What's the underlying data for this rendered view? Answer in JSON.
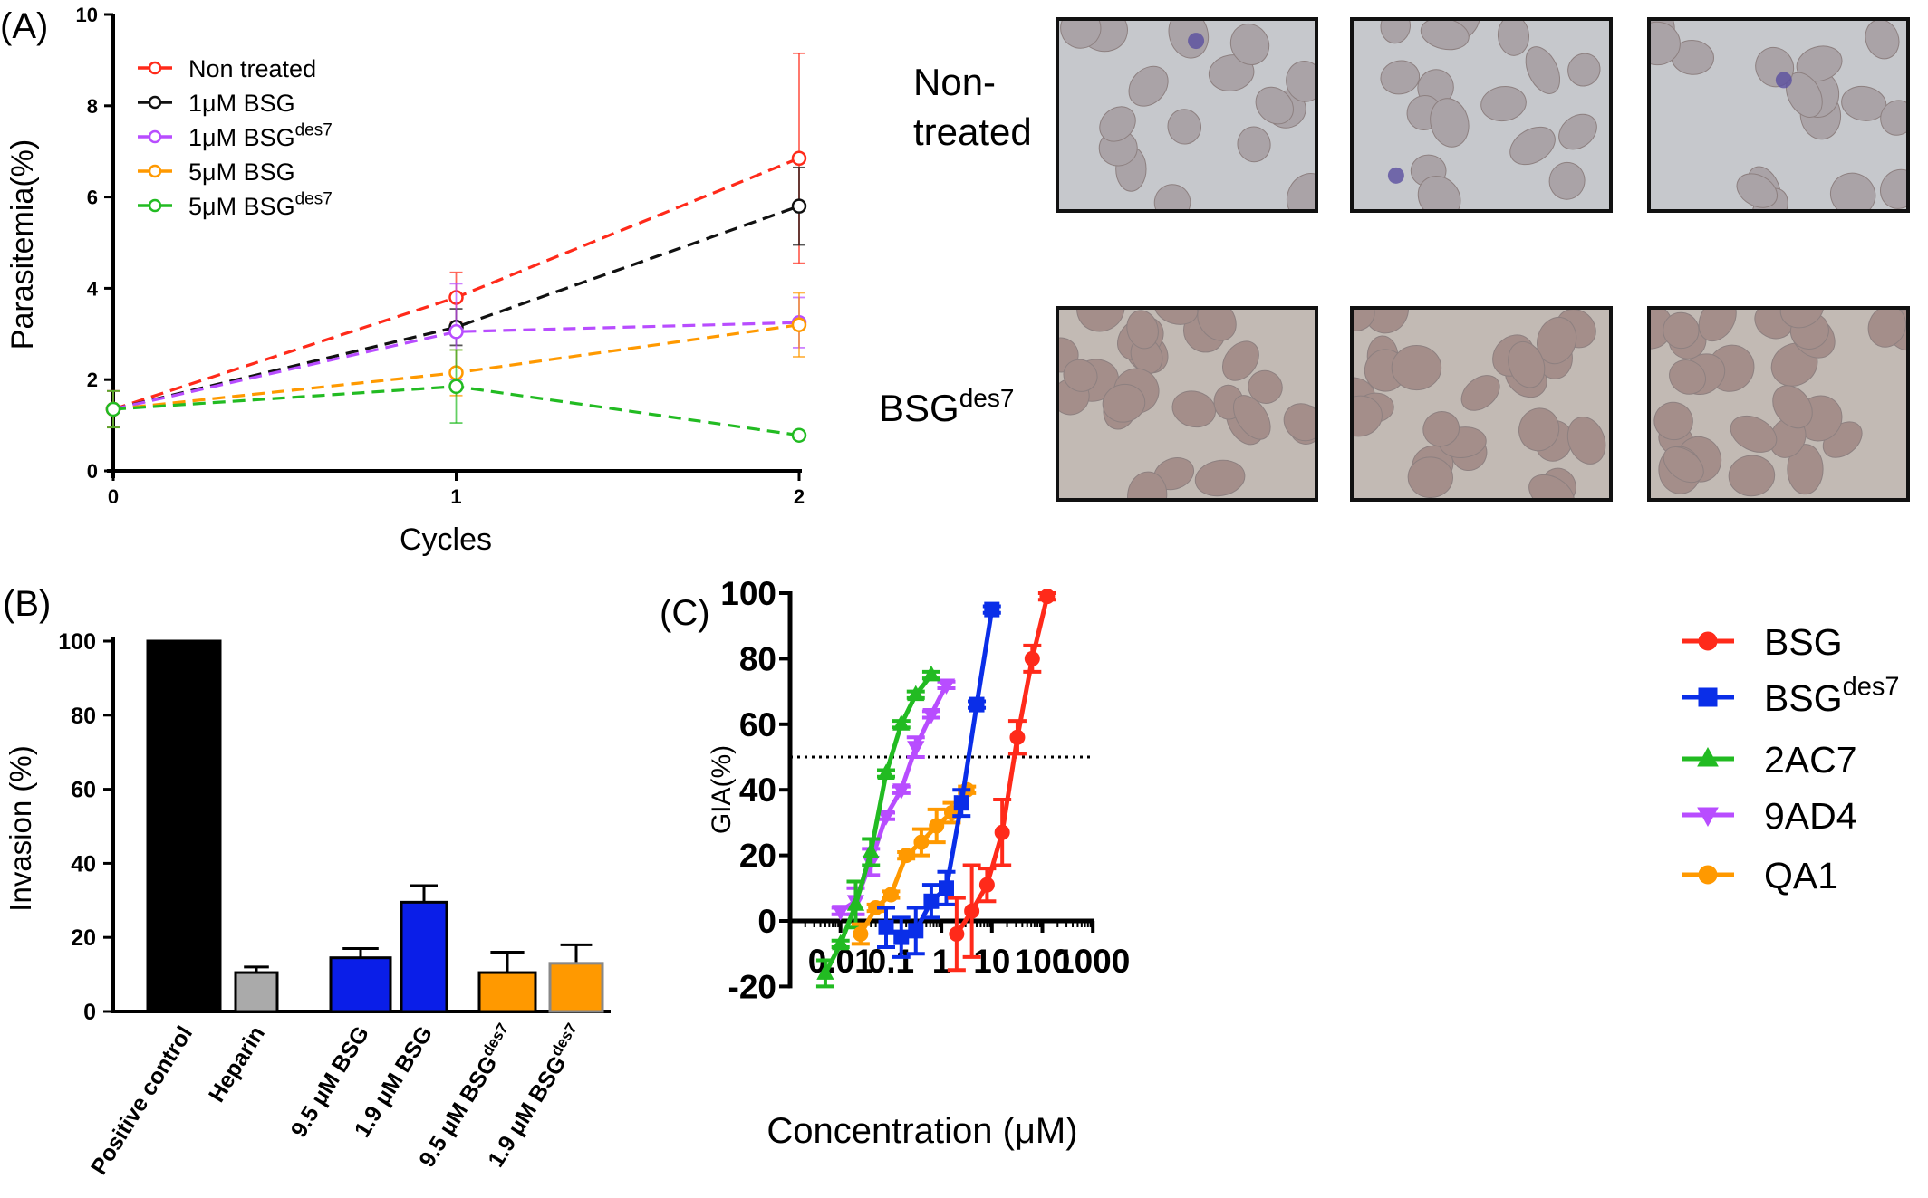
{
  "panel_labels": {
    "a": "(A)",
    "b": "(B)",
    "c": "(C)"
  },
  "micrographs": {
    "rows": [
      {
        "label_lines": [
          "Non-",
          "treated"
        ],
        "label_sup": ""
      },
      {
        "label": "BSG",
        "label_sup": "des7"
      }
    ]
  },
  "chart_data": [
    {
      "type": "line",
      "panel": "A",
      "xlabel": "Cycles",
      "ylabel": "Parasitemia(%)",
      "x": [
        0,
        1,
        2
      ],
      "xticks": [
        0,
        1,
        2
      ],
      "yticks": [
        0,
        2,
        4,
        6,
        8,
        10
      ],
      "xlim": [
        0,
        2
      ],
      "ylim": [
        0,
        10
      ],
      "line_style": "dashed",
      "marker": "open-circle",
      "legend_position": "top-left",
      "series": [
        {
          "name": "Non treated",
          "sup": "",
          "color": "#ff2a1a",
          "values": [
            1.35,
            3.8,
            6.85
          ],
          "errors": [
            0.4,
            0.55,
            2.3
          ]
        },
        {
          "name": "1μM BSG",
          "sup": "",
          "color": "#111111",
          "values": [
            1.35,
            3.15,
            5.8
          ],
          "errors": [
            0.4,
            0.4,
            0.85
          ]
        },
        {
          "name": "1μM BSG",
          "sup": "des7",
          "color": "#b84dff",
          "values": [
            1.35,
            3.05,
            3.25
          ],
          "errors": [
            0.4,
            1.05,
            0.55
          ]
        },
        {
          "name": "5μM BSG",
          "sup": "",
          "color": "#ff9900",
          "values": [
            1.35,
            2.15,
            3.2
          ],
          "errors": [
            0.4,
            0.5,
            0.7
          ]
        },
        {
          "name": "5μM BSG",
          "sup": "des7",
          "color": "#22bb22",
          "values": [
            1.35,
            1.85,
            0.78
          ],
          "errors": [
            0.4,
            0.8,
            0.08
          ]
        }
      ]
    },
    {
      "type": "bar",
      "panel": "B",
      "ylabel": "Invasion (%)",
      "ylim": [
        0,
        100
      ],
      "yticks": [
        0,
        20,
        40,
        60,
        80,
        100
      ],
      "categories": [
        {
          "label": "Positive control",
          "sup": ""
        },
        {
          "label": "Heparin",
          "sup": ""
        },
        {
          "label": "9.5 μM BSG",
          "sup": ""
        },
        {
          "label": "1.9 μM BSG",
          "sup": ""
        },
        {
          "label": "9.5 μM BSG",
          "sup": "des7"
        },
        {
          "label": "1.9 μM BSG",
          "sup": "des7"
        }
      ],
      "values": [
        100,
        10.5,
        14.5,
        29.5,
        10.5,
        13
      ],
      "errors": [
        0,
        1.5,
        2.5,
        4.5,
        5.5,
        5
      ],
      "colors": [
        "#000000",
        "#aaaaaa",
        "#0a1ee8",
        "#0a1ee8",
        "#ff9900",
        "#ff9900"
      ]
    },
    {
      "type": "line",
      "panel": "C",
      "xlabel": "Concentration (μM)",
      "ylabel": "GIA(%)",
      "xscale": "log",
      "xlim": [
        0.001,
        1000
      ],
      "ylim": [
        -20,
        100
      ],
      "xticks": [
        "0.01",
        "0.1",
        "1",
        "10",
        "100",
        "1000"
      ],
      "yticks": [
        -20,
        0,
        20,
        40,
        60,
        80,
        100
      ],
      "reference_line": {
        "y": 50,
        "style": "dotted"
      },
      "legend_position": "right",
      "series": [
        {
          "name": "BSG",
          "sup": "",
          "color": "#ff2a1a",
          "marker": "circle",
          "x": [
            2,
            4,
            8,
            16,
            32,
            63,
            125
          ],
          "values": [
            -4,
            3,
            11,
            27,
            56,
            80,
            99
          ],
          "errors": [
            11,
            14,
            5,
            10,
            5,
            4,
            1
          ]
        },
        {
          "name": "BSG",
          "sup": "des7",
          "color": "#0a2ee8",
          "marker": "square",
          "x": [
            0.08,
            0.16,
            0.31,
            0.63,
            1.25,
            2.5,
            5,
            10
          ],
          "values": [
            -2,
            -5,
            -3,
            6,
            10,
            36,
            66,
            95
          ],
          "errors": [
            6,
            6,
            7,
            5,
            5,
            4,
            1,
            1
          ]
        },
        {
          "name": "2AC7",
          "sup": "",
          "color": "#22bb22",
          "marker": "triangle-up",
          "x": [
            0.005,
            0.01,
            0.02,
            0.04,
            0.08,
            0.16,
            0.31,
            0.63
          ],
          "values": [
            -16,
            -7,
            5,
            21,
            45,
            60,
            69,
            75
          ],
          "errors": [
            4,
            1,
            7,
            4,
            1,
            1,
            1,
            1
          ]
        },
        {
          "name": "9AD4",
          "sup": "",
          "color": "#b84dff",
          "marker": "triangle-down",
          "x": [
            0.01,
            0.02,
            0.04,
            0.08,
            0.16,
            0.31,
            0.63,
            1.25
          ],
          "values": [
            3,
            6,
            18,
            32,
            40,
            53,
            63,
            72
          ],
          "errors": [
            1,
            4,
            4,
            1,
            1,
            3,
            1,
            1
          ]
        },
        {
          "name": "QA1",
          "sup": "",
          "color": "#ff9900",
          "marker": "circle",
          "x": [
            0.025,
            0.05,
            0.1,
            0.2,
            0.4,
            0.8,
            1.6,
            3.2
          ],
          "values": [
            -4,
            4,
            8,
            20,
            24,
            29,
            33,
            40
          ],
          "errors": [
            3,
            1,
            1,
            1,
            4,
            5,
            3,
            1
          ]
        }
      ]
    }
  ]
}
